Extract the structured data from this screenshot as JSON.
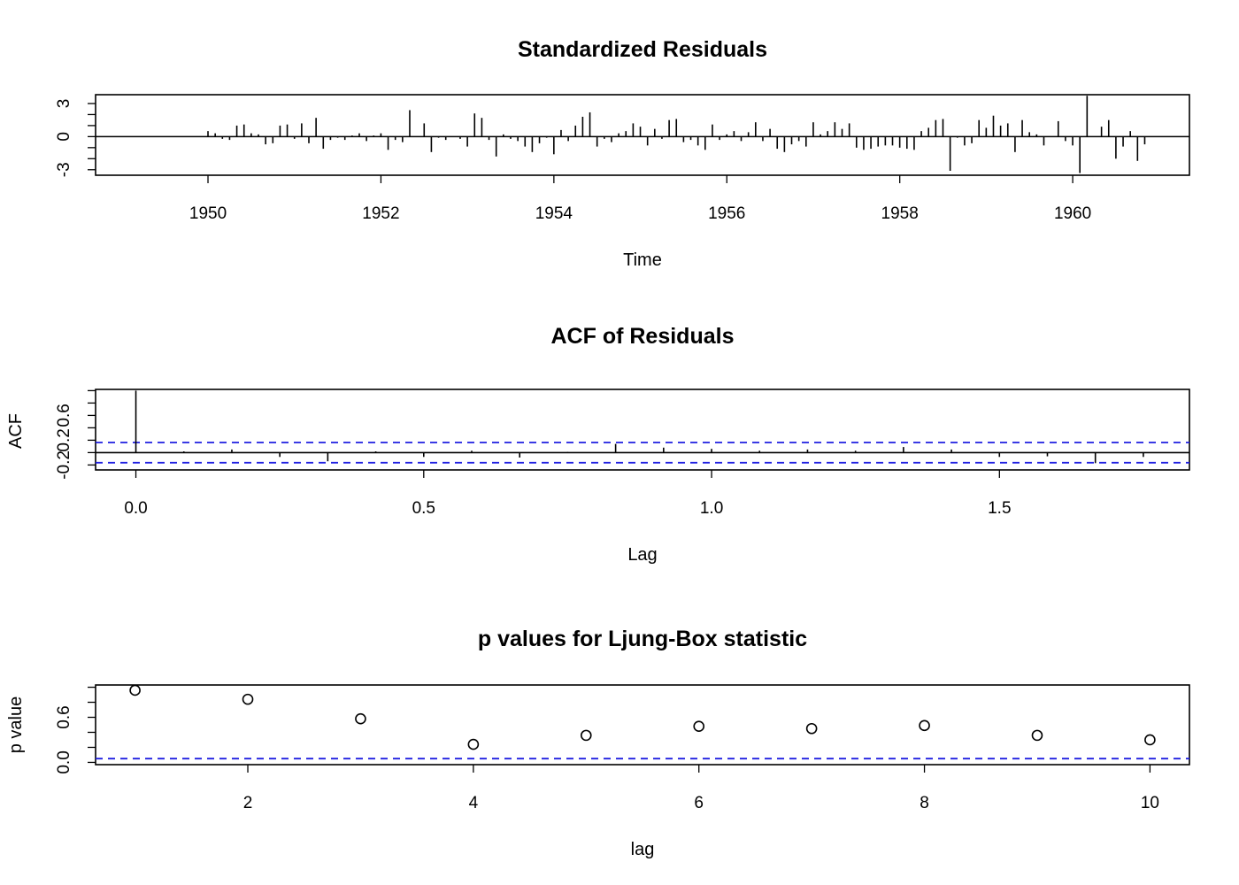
{
  "chart_data": [
    {
      "type": "bar",
      "title": "Standardized Residuals",
      "xlabel": "Time",
      "ylabel": "",
      "xlim": [
        1948.7,
        1961.35
      ],
      "ylim": [
        -3.5,
        3.8
      ],
      "xticks": [
        "1950",
        "1952",
        "1954",
        "1956",
        "1958",
        "1960"
      ],
      "yticks": [
        "-3",
        "0",
        "3"
      ],
      "reference_line": 0,
      "x_start": 1949.0,
      "x_step": 0.08333,
      "values": [
        0,
        0,
        0,
        0,
        0,
        0,
        0,
        0,
        0,
        0,
        0,
        0,
        0.5,
        0.3,
        -0.2,
        -0.3,
        1.0,
        1.1,
        0.3,
        0.2,
        -0.7,
        -0.6,
        1.0,
        1.1,
        -0.2,
        1.2,
        -0.6,
        1.7,
        -1.1,
        -0.3,
        -0.1,
        -0.3,
        0.1,
        0.3,
        -0.4,
        0.1,
        0.3,
        -1.2,
        -0.3,
        -0.5,
        2.4,
        0.0,
        1.2,
        -1.4,
        -0.1,
        -0.3,
        0.0,
        -0.2,
        -0.9,
        2.1,
        1.7,
        -0.3,
        -1.8,
        0.2,
        -0.2,
        -0.4,
        -0.9,
        -1.4,
        -0.6,
        -0.1,
        -1.6,
        0.6,
        -0.4,
        1.0,
        1.8,
        2.2,
        -0.9,
        -0.2,
        -0.5,
        0.3,
        0.5,
        1.2,
        0.9,
        -0.8,
        0.7,
        -0.2,
        1.5,
        1.6,
        -0.5,
        -0.3,
        -0.8,
        -1.2,
        1.1,
        -0.3,
        0.2,
        0.5,
        -0.4,
        0.4,
        1.3,
        -0.4,
        0.7,
        -1.1,
        -1.4,
        -0.7,
        -0.4,
        -0.9,
        1.3,
        0.2,
        0.5,
        1.3,
        0.7,
        1.2,
        -1.0,
        -1.2,
        -1.1,
        -0.9,
        -0.8,
        -0.8,
        -1.0,
        -1.1,
        -1.2,
        0.5,
        0.8,
        1.5,
        1.6,
        -3.1,
        -0.1,
        -0.8,
        -0.6,
        1.5,
        0.8,
        1.9,
        1.0,
        1.2,
        -1.4,
        1.5,
        0.4,
        0.2,
        -0.8,
        0.0,
        1.4,
        -0.4,
        -0.8,
        -3.3,
        3.7,
        0.0,
        0.9,
        1.5,
        -2.0,
        -0.9,
        0.5,
        -2.2,
        -0.7
      ]
    },
    {
      "type": "bar",
      "title": "ACF of Residuals",
      "xlabel": "Lag",
      "ylabel": "ACF",
      "xlim": [
        -0.07,
        1.83
      ],
      "ylim": [
        -0.28,
        1.02
      ],
      "xticks": [
        "0.0",
        "0.5",
        "1.0",
        "1.5"
      ],
      "yticks": [
        "-0.2",
        "0.2",
        "0.6"
      ],
      "y_minor_ticks": [
        -0.2,
        0.0,
        0.2,
        0.4,
        0.6,
        0.8,
        1.0
      ],
      "reference_line": 0,
      "confidence_bounds": [
        0.163,
        -0.163
      ],
      "x_step": 0.08333,
      "values": [
        1.0,
        0.02,
        0.05,
        -0.07,
        -0.14,
        0.02,
        -0.07,
        0.03,
        -0.08,
        0.01,
        0.14,
        0.08,
        0.06,
        0.03,
        0.05,
        0.03,
        0.09,
        0.05,
        -0.07,
        -0.06,
        -0.17,
        -0.07
      ]
    },
    {
      "type": "scatter",
      "title": "p values for Ljung-Box statistic",
      "xlabel": "lag",
      "ylabel": "p value",
      "xlim": [
        0.65,
        10.35
      ],
      "ylim": [
        -0.03,
        1.03
      ],
      "xticks": [
        "2",
        "4",
        "6",
        "8",
        "10"
      ],
      "yticks": [
        "0.0",
        "0.6"
      ],
      "y_minor_ticks": [
        0.0,
        0.2,
        0.4,
        0.6,
        0.8,
        1.0
      ],
      "significance_line": 0.05,
      "x": [
        1,
        2,
        3,
        4,
        5,
        6,
        7,
        8,
        9,
        10
      ],
      "y": [
        0.96,
        0.84,
        0.58,
        0.24,
        0.36,
        0.48,
        0.45,
        0.49,
        0.36,
        0.3
      ]
    }
  ]
}
